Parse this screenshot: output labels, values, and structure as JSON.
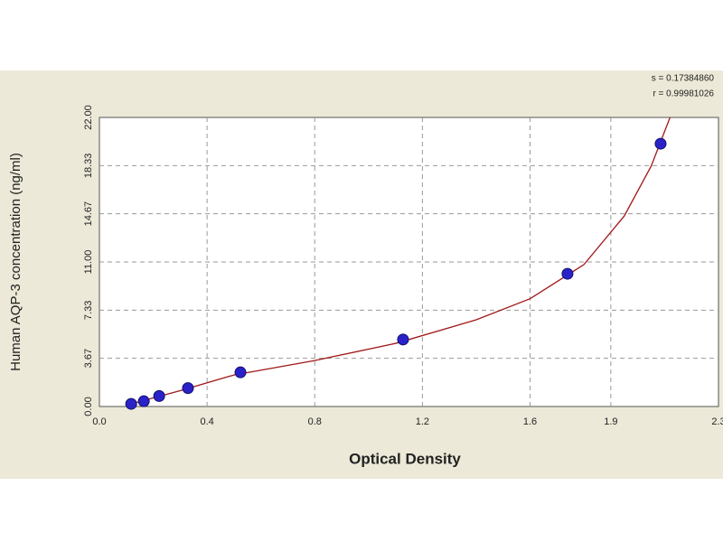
{
  "chart_data": {
    "type": "scatter",
    "x_label": "Optical Density",
    "y_label": "Human AQP-3 concentration (ng/ml)",
    "annotations": [
      "s = 0.17384860",
      "r = 0.99981026"
    ],
    "x": [
      0.118,
      0.165,
      0.222,
      0.329,
      0.524,
      1.128,
      1.739,
      2.085
    ],
    "series": [
      {
        "color": "#2a22c8",
        "values": [
          0.2,
          0.4,
          0.8,
          1.4,
          2.6,
          5.1,
          10.1,
          20.0
        ]
      }
    ],
    "curve": {
      "color": "#a01818",
      "x": [
        0.1,
        0.3,
        0.5,
        0.8,
        1.1,
        1.4,
        1.6,
        1.8,
        1.95,
        2.05,
        2.12
      ],
      "y": [
        0.1,
        1.2,
        2.4,
        3.5,
        4.8,
        6.6,
        8.2,
        10.8,
        14.5,
        18.3,
        22
      ]
    },
    "xlim": [
      0,
      2.3
    ],
    "xticks": [
      {
        "value": 0,
        "label": "0.0"
      },
      {
        "value": 0.4,
        "label": "0.4"
      },
      {
        "value": 0.8,
        "label": "0.8"
      },
      {
        "value": 1.2,
        "label": "1.2"
      },
      {
        "value": 1.6,
        "label": "1.6"
      },
      {
        "value": 1.9,
        "label": "1.9"
      },
      {
        "value": 2.3,
        "label": "2.3"
      }
    ],
    "ylim": [
      0,
      22
    ],
    "yticks": [
      {
        "value": 0,
        "label": "0.00"
      },
      {
        "value": 3.67,
        "label": "3.67"
      },
      {
        "value": 7.33,
        "label": "7.33"
      },
      {
        "value": 11,
        "label": "11.00"
      },
      {
        "value": 14.67,
        "label": "14.67"
      },
      {
        "value": 18.33,
        "label": "18.33"
      },
      {
        "value": 22,
        "label": "22.00"
      }
    ],
    "grid": true
  }
}
